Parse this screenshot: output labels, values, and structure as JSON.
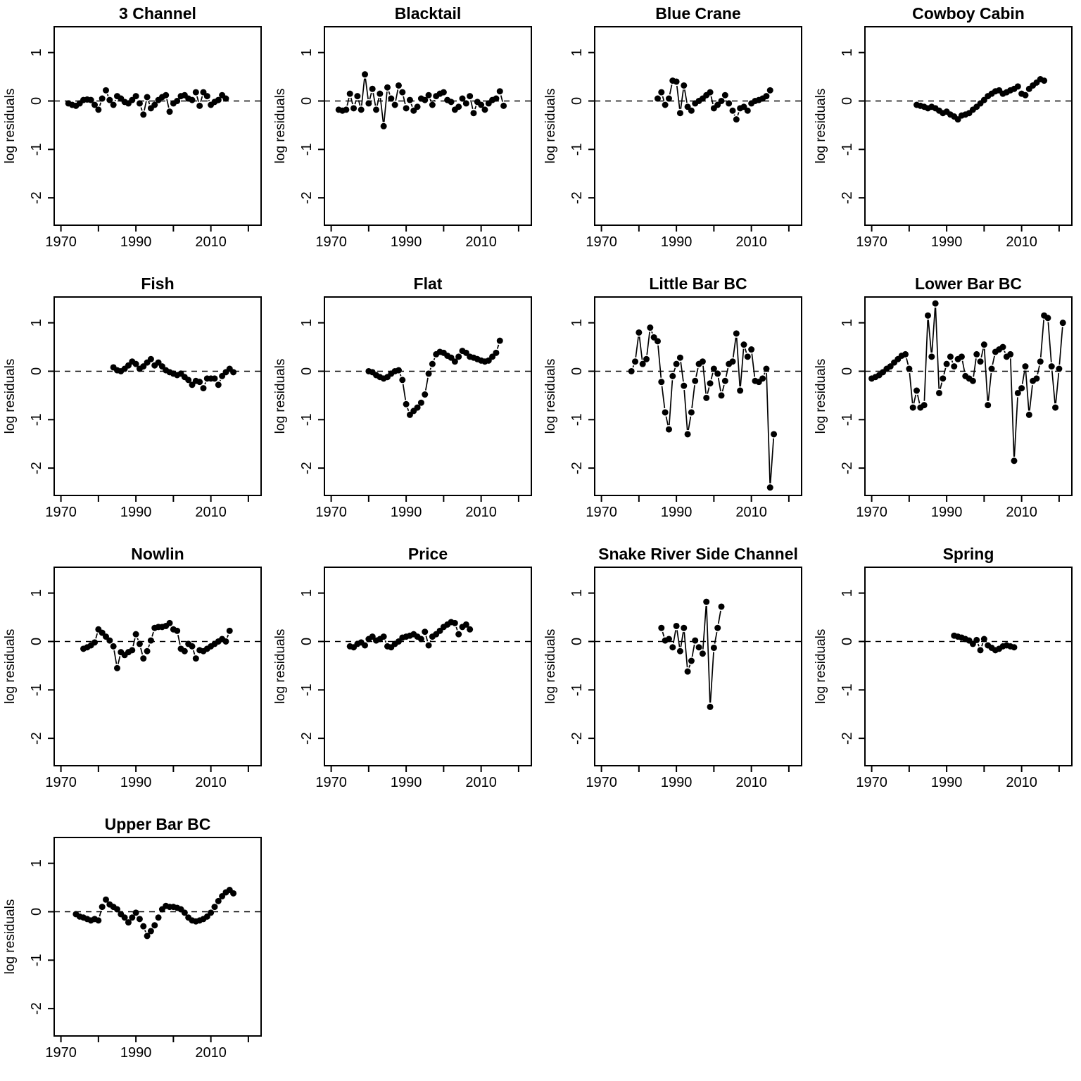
{
  "figure": {
    "ylabel_shared": "log residuals",
    "foreground": "#000000",
    "background": "#ffffff"
  },
  "axes": {
    "xlim": [
      1968.2,
      2023.4
    ],
    "ylim": [
      -2.565,
      1.533
    ],
    "xticks": [
      1970,
      1980,
      1990,
      2000,
      2010,
      2020
    ],
    "xtick_labeled": [
      1970,
      1990,
      2010
    ],
    "yticks": [
      1,
      0,
      -1,
      -2
    ],
    "ref_line": 0,
    "grid": false,
    "legend": "none",
    "marker": "filled-circle"
  },
  "chart_data": [
    {
      "type": "line",
      "title": "3 Channel",
      "xlabel": "",
      "ylabel": "log residuals",
      "x": [
        1972,
        1973,
        1974,
        1975,
        1976,
        1977,
        1978,
        1979,
        1980,
        1981,
        1982,
        1983,
        1984,
        1985,
        1986,
        1987,
        1988,
        1989,
        1990,
        1991,
        1992,
        1993,
        1994,
        1995,
        1996,
        1997,
        1998,
        1999,
        2000,
        2001,
        2002,
        2003,
        2004,
        2005,
        2006,
        2007,
        2008,
        2009,
        2010,
        2011,
        2012,
        2013,
        2014
      ],
      "y": [
        -0.05,
        -0.08,
        -0.1,
        -0.05,
        0.02,
        0.03,
        0.02,
        -0.08,
        -0.18,
        0.05,
        0.22,
        0.02,
        -0.08,
        0.1,
        0.05,
        -0.02,
        -0.05,
        0.02,
        0.1,
        -0.05,
        -0.28,
        0.08,
        -0.15,
        -0.08,
        0.02,
        0.08,
        0.12,
        -0.22,
        -0.05,
        0,
        0.1,
        0.12,
        0.05,
        0.02,
        0.18,
        -0.1,
        0.18,
        0.1,
        -0.08,
        -0.02,
        0.02,
        0.12,
        0.05
      ]
    },
    {
      "type": "line",
      "title": "Blacktail",
      "xlabel": "",
      "ylabel": "log residuals",
      "x": [
        1972,
        1973,
        1974,
        1975,
        1976,
        1977,
        1978,
        1979,
        1980,
        1981,
        1982,
        1983,
        1984,
        1985,
        1986,
        1987,
        1988,
        1989,
        1990,
        1991,
        1992,
        1993,
        1994,
        1995,
        1996,
        1997,
        1998,
        1999,
        2000,
        2001,
        2002,
        2003,
        2004,
        2005,
        2006,
        2007,
        2008,
        2009,
        2010,
        2011,
        2012,
        2013,
        2014,
        2015,
        2016
      ],
      "y": [
        -0.18,
        -0.2,
        -0.18,
        0.15,
        -0.15,
        0.1,
        -0.18,
        0.55,
        -0.05,
        0.25,
        -0.18,
        0.15,
        -0.52,
        0.28,
        0.05,
        -0.08,
        0.32,
        0.18,
        -0.15,
        0.02,
        -0.2,
        -0.12,
        0.05,
        0.02,
        0.12,
        -0.08,
        0.1,
        0.15,
        0.18,
        0.02,
        -0.02,
        -0.18,
        -0.12,
        0.05,
        -0.05,
        0.1,
        -0.25,
        -0.02,
        -0.08,
        -0.18,
        -0.05,
        0.02,
        0.05,
        0.2,
        -0.1
      ]
    },
    {
      "type": "line",
      "title": "Blue Crane",
      "xlabel": "",
      "ylabel": "log residuals",
      "x": [
        1985,
        1986,
        1987,
        1988,
        1989,
        1990,
        1991,
        1992,
        1993,
        1994,
        1995,
        1996,
        1997,
        1998,
        1999,
        2000,
        2001,
        2002,
        2003,
        2004,
        2005,
        2006,
        2007,
        2008,
        2009,
        2010,
        2011,
        2012,
        2013,
        2014,
        2015
      ],
      "y": [
        0.05,
        0.18,
        -0.08,
        0.05,
        0.42,
        0.4,
        -0.25,
        0.32,
        -0.12,
        -0.2,
        -0.05,
        0,
        0.05,
        0.12,
        0.18,
        -0.15,
        -0.08,
        0,
        0.12,
        -0.05,
        -0.2,
        -0.38,
        -0.15,
        -0.12,
        -0.2,
        -0.05,
        0,
        0.02,
        0.05,
        0.1,
        0.22
      ]
    },
    {
      "type": "line",
      "title": "Cowboy Cabin",
      "xlabel": "",
      "ylabel": "log residuals",
      "x": [
        1982,
        1983,
        1984,
        1985,
        1986,
        1987,
        1988,
        1989,
        1990,
        1991,
        1992,
        1993,
        1994,
        1995,
        1996,
        1997,
        1998,
        1999,
        2000,
        2001,
        2002,
        2003,
        2004,
        2005,
        2006,
        2007,
        2008,
        2009,
        2010,
        2011,
        2012,
        2013,
        2014,
        2015,
        2016
      ],
      "y": [
        -0.08,
        -0.1,
        -0.12,
        -0.15,
        -0.12,
        -0.15,
        -0.2,
        -0.25,
        -0.22,
        -0.28,
        -0.32,
        -0.38,
        -0.3,
        -0.28,
        -0.25,
        -0.18,
        -0.12,
        -0.05,
        0.02,
        0.1,
        0.15,
        0.2,
        0.22,
        0.15,
        0.18,
        0.22,
        0.25,
        0.3,
        0.15,
        0.12,
        0.25,
        0.32,
        0.38,
        0.45,
        0.42
      ]
    },
    {
      "type": "line",
      "title": "Fish",
      "xlabel": "",
      "ylabel": "log residuals",
      "x": [
        1984,
        1985,
        1986,
        1987,
        1988,
        1989,
        1990,
        1991,
        1992,
        1993,
        1994,
        1995,
        1996,
        1997,
        1998,
        1999,
        2000,
        2001,
        2002,
        2003,
        2004,
        2005,
        2006,
        2007,
        2008,
        2009,
        2010,
        2011,
        2012,
        2013,
        2014,
        2015,
        2016
      ],
      "y": [
        0.08,
        0.02,
        0,
        0.05,
        0.12,
        0.2,
        0.15,
        0.05,
        0.1,
        0.18,
        0.25,
        0.12,
        0.18,
        0.1,
        0.02,
        -0.02,
        -0.05,
        -0.08,
        -0.05,
        -0.12,
        -0.18,
        -0.28,
        -0.2,
        -0.22,
        -0.35,
        -0.15,
        -0.15,
        -0.15,
        -0.28,
        -0.1,
        -0.02,
        0.05,
        -0.02
      ]
    },
    {
      "type": "line",
      "title": "Flat",
      "xlabel": "",
      "ylabel": "log residuals",
      "x": [
        1980,
        1981,
        1982,
        1983,
        1984,
        1985,
        1986,
        1987,
        1988,
        1989,
        1990,
        1991,
        1992,
        1993,
        1994,
        1995,
        1996,
        1997,
        1998,
        1999,
        2000,
        2001,
        2002,
        2003,
        2004,
        2005,
        2006,
        2007,
        2008,
        2009,
        2010,
        2011,
        2012,
        2013,
        2014,
        2015
      ],
      "y": [
        0,
        -0.02,
        -0.08,
        -0.12,
        -0.15,
        -0.12,
        -0.05,
        0,
        0.02,
        -0.18,
        -0.68,
        -0.9,
        -0.82,
        -0.75,
        -0.65,
        -0.48,
        -0.05,
        0.15,
        0.35,
        0.4,
        0.38,
        0.32,
        0.28,
        0.2,
        0.3,
        0.42,
        0.38,
        0.3,
        0.28,
        0.25,
        0.22,
        0.2,
        0.22,
        0.3,
        0.38,
        0.63
      ]
    },
    {
      "type": "line",
      "title": "Little Bar BC",
      "xlabel": "",
      "ylabel": "log residuals",
      "x": [
        1978,
        1979,
        1980,
        1981,
        1982,
        1983,
        1984,
        1985,
        1986,
        1987,
        1988,
        1989,
        1990,
        1991,
        1992,
        1993,
        1994,
        1995,
        1996,
        1997,
        1998,
        1999,
        2000,
        2001,
        2002,
        2003,
        2004,
        2005,
        2006,
        2007,
        2008,
        2009,
        2010,
        2011,
        2012,
        2013,
        2014,
        2015,
        2016
      ],
      "y": [
        0,
        0.2,
        0.8,
        0.15,
        0.25,
        0.9,
        0.7,
        0.62,
        -0.22,
        -0.85,
        -1.2,
        -0.1,
        0.15,
        0.28,
        -0.3,
        -1.3,
        -0.85,
        -0.2,
        0.15,
        0.2,
        -0.55,
        -0.25,
        0.05,
        -0.05,
        -0.5,
        -0.2,
        0.15,
        0.2,
        0.78,
        -0.4,
        0.55,
        0.3,
        0.45,
        -0.2,
        -0.22,
        -0.15,
        0.05,
        -2.4,
        -1.3
      ]
    },
    {
      "type": "line",
      "title": "Lower Bar BC",
      "xlabel": "",
      "ylabel": "log residuals",
      "x": [
        1970,
        1971,
        1972,
        1973,
        1974,
        1975,
        1976,
        1977,
        1978,
        1979,
        1980,
        1981,
        1982,
        1983,
        1984,
        1985,
        1986,
        1987,
        1988,
        1989,
        1990,
        1991,
        1992,
        1993,
        1994,
        1995,
        1996,
        1997,
        1998,
        1999,
        2000,
        2001,
        2002,
        2003,
        2004,
        2005,
        2006,
        2007,
        2008,
        2009,
        2010,
        2011,
        2012,
        2013,
        2014,
        2015,
        2016,
        2017,
        2018,
        2019,
        2020,
        2021
      ],
      "y": [
        -0.15,
        -0.12,
        -0.08,
        -0.02,
        0.05,
        0.1,
        0.18,
        0.25,
        0.32,
        0.35,
        0.05,
        -0.75,
        -0.4,
        -0.75,
        -0.7,
        1.15,
        0.3,
        1.4,
        -0.45,
        -0.15,
        0.15,
        0.3,
        0.1,
        0.25,
        0.3,
        -0.1,
        -0.15,
        -0.2,
        0.35,
        0.2,
        0.55,
        -0.7,
        0.05,
        0.4,
        0.45,
        0.5,
        0.3,
        0.35,
        -1.85,
        -0.45,
        -0.35,
        0.1,
        -0.9,
        -0.2,
        -0.15,
        0.2,
        1.15,
        1.1,
        0.1,
        -0.75,
        0.05,
        1.0
      ]
    },
    {
      "type": "line",
      "title": "Nowlin",
      "xlabel": "",
      "ylabel": "log residuals",
      "x": [
        1976,
        1977,
        1978,
        1979,
        1980,
        1981,
        1982,
        1983,
        1984,
        1985,
        1986,
        1987,
        1988,
        1989,
        1990,
        1991,
        1992,
        1993,
        1994,
        1995,
        1996,
        1997,
        1998,
        1999,
        2000,
        2001,
        2002,
        2003,
        2004,
        2005,
        2006,
        2007,
        2008,
        2009,
        2010,
        2011,
        2012,
        2013,
        2014,
        2015
      ],
      "y": [
        -0.15,
        -0.12,
        -0.08,
        -0.02,
        0.25,
        0.18,
        0.1,
        0.02,
        -0.1,
        -0.55,
        -0.22,
        -0.28,
        -0.22,
        -0.18,
        0.15,
        -0.05,
        -0.35,
        -0.2,
        0.02,
        0.28,
        0.3,
        0.3,
        0.32,
        0.38,
        0.25,
        0.22,
        -0.15,
        -0.2,
        -0.05,
        -0.1,
        -0.35,
        -0.18,
        -0.2,
        -0.15,
        -0.1,
        -0.05,
        0,
        0.05,
        0,
        0.22
      ]
    },
    {
      "type": "line",
      "title": "Price",
      "xlabel": "",
      "ylabel": "log residuals",
      "x": [
        1975,
        1976,
        1977,
        1978,
        1979,
        1980,
        1981,
        1982,
        1983,
        1984,
        1985,
        1986,
        1987,
        1988,
        1989,
        1990,
        1991,
        1992,
        1993,
        1994,
        1995,
        1996,
        1997,
        1998,
        1999,
        2000,
        2001,
        2002,
        2003,
        2004,
        2005,
        2006,
        2007
      ],
      "y": [
        -0.1,
        -0.12,
        -0.05,
        -0.02,
        -0.08,
        0.05,
        0.1,
        0.02,
        0.05,
        0.1,
        -0.1,
        -0.12,
        -0.05,
        0,
        0.08,
        0.1,
        0.12,
        0.15,
        0.1,
        0.05,
        0.2,
        -0.08,
        0.1,
        0.15,
        0.22,
        0.3,
        0.35,
        0.4,
        0.38,
        0.15,
        0.3,
        0.35,
        0.25
      ]
    },
    {
      "type": "line",
      "title": "Snake River Side Channel",
      "xlabel": "",
      "ylabel": "log residuals",
      "x": [
        1986,
        1987,
        1988,
        1989,
        1990,
        1991,
        1992,
        1993,
        1994,
        1995,
        1996,
        1997,
        1998,
        1999,
        2000,
        2001,
        2002
      ],
      "y": [
        0.28,
        0.02,
        0.05,
        -0.12,
        0.32,
        -0.2,
        0.28,
        -0.62,
        -0.4,
        0.02,
        -0.12,
        -0.25,
        0.82,
        -1.35,
        -0.13,
        0.28,
        0.72
      ]
    },
    {
      "type": "line",
      "title": "Spring",
      "xlabel": "",
      "ylabel": "log residuals",
      "x": [
        1992,
        1993,
        1994,
        1995,
        1996,
        1997,
        1998,
        1999,
        2000,
        2001,
        2002,
        2003,
        2004,
        2005,
        2006,
        2007,
        2008
      ],
      "y": [
        0.12,
        0.1,
        0.08,
        0.05,
        0.02,
        -0.05,
        0.03,
        -0.18,
        0.05,
        -0.08,
        -0.13,
        -0.18,
        -0.15,
        -0.1,
        -0.08,
        -0.1,
        -0.12
      ]
    },
    {
      "type": "line",
      "title": "Upper Bar BC",
      "xlabel": "",
      "ylabel": "log residuals",
      "x": [
        1974,
        1975,
        1976,
        1977,
        1978,
        1979,
        1980,
        1981,
        1982,
        1983,
        1984,
        1985,
        1986,
        1987,
        1988,
        1989,
        1990,
        1991,
        1992,
        1993,
        1994,
        1995,
        1996,
        1997,
        1998,
        1999,
        2000,
        2001,
        2002,
        2003,
        2004,
        2005,
        2006,
        2007,
        2008,
        2009,
        2010,
        2011,
        2012,
        2013,
        2014,
        2015,
        2016
      ],
      "y": [
        -0.05,
        -0.1,
        -0.12,
        -0.15,
        -0.18,
        -0.15,
        -0.18,
        0.1,
        0.25,
        0.15,
        0.1,
        0.05,
        -0.05,
        -0.12,
        -0.22,
        -0.12,
        -0.02,
        -0.15,
        -0.3,
        -0.5,
        -0.4,
        -0.28,
        -0.12,
        0.05,
        0.12,
        0.1,
        0.1,
        0.08,
        0.05,
        -0.02,
        -0.12,
        -0.18,
        -0.2,
        -0.18,
        -0.15,
        -0.1,
        -0.02,
        0.1,
        0.22,
        0.32,
        0.4,
        0.45,
        0.38
      ]
    }
  ]
}
